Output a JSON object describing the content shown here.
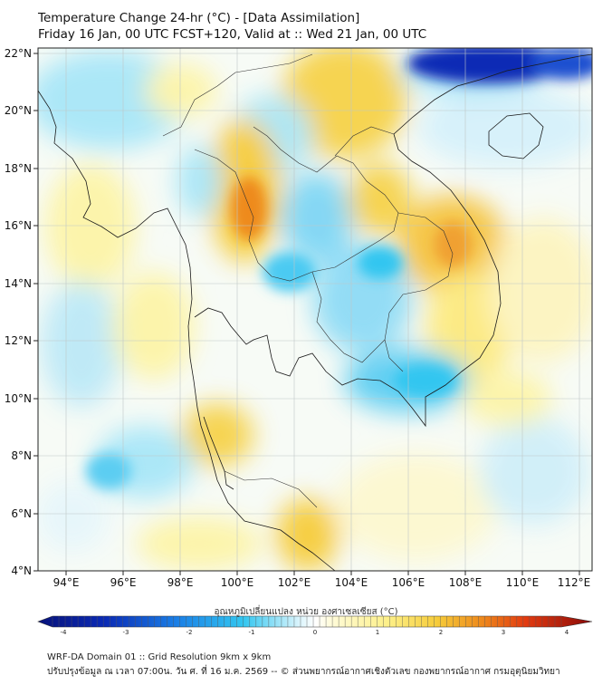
{
  "header": {
    "title_line1": "Temperature Change 24-hr (°C) - [Data Assimilation]",
    "title_line2": "Friday 16 Jan, 00 UTC FCST+120, Valid at :: Wed 21 Jan, 00 UTC"
  },
  "map": {
    "lat_labels": [
      "22°N",
      "20°N",
      "18°N",
      "16°N",
      "14°N",
      "12°N",
      "10°N",
      "8°N",
      "6°N",
      "4°N"
    ],
    "lon_labels": [
      "94°E",
      "96°E",
      "98°E",
      "100°E",
      "102°E",
      "104°E",
      "106°E",
      "108°E",
      "110°E",
      "112°E"
    ],
    "lat_range": [
      4,
      22.3
    ],
    "lon_range": [
      93.1,
      112.4
    ],
    "grid": true,
    "colors": {
      "strong_cold": "#0a2ab5",
      "cold": "#33c6f0",
      "cool": "#a8e6f8",
      "neutral": "#ffffff",
      "mild_warm": "#fdf4a8",
      "warm": "#f6cc3a",
      "hot": "#ee8a1c"
    }
  },
  "colorbar": {
    "label": "อุณหภูมิเปลี่ยนแปลง หน่วย องศาเซลเซียส (°C)",
    "ticks": [
      "-4",
      "-3",
      "-2",
      "-1",
      "0",
      "1",
      "2",
      "3",
      "4"
    ],
    "range": [
      -4,
      4
    ]
  },
  "footer": {
    "line1": "WRF-DA Domain 01 :: Grid Resolution 9km x 9km",
    "line2": "ปรับปรุงข้อมูล ณ เวลา 07:00น. วัน ศ. ที่ 16 ม.ค. 2569 -- © ส่วนพยากรณ์อากาศเชิงตัวเลข กองพยากรณ์อากาศ กรมอุตุนิยมวิทยา"
  }
}
